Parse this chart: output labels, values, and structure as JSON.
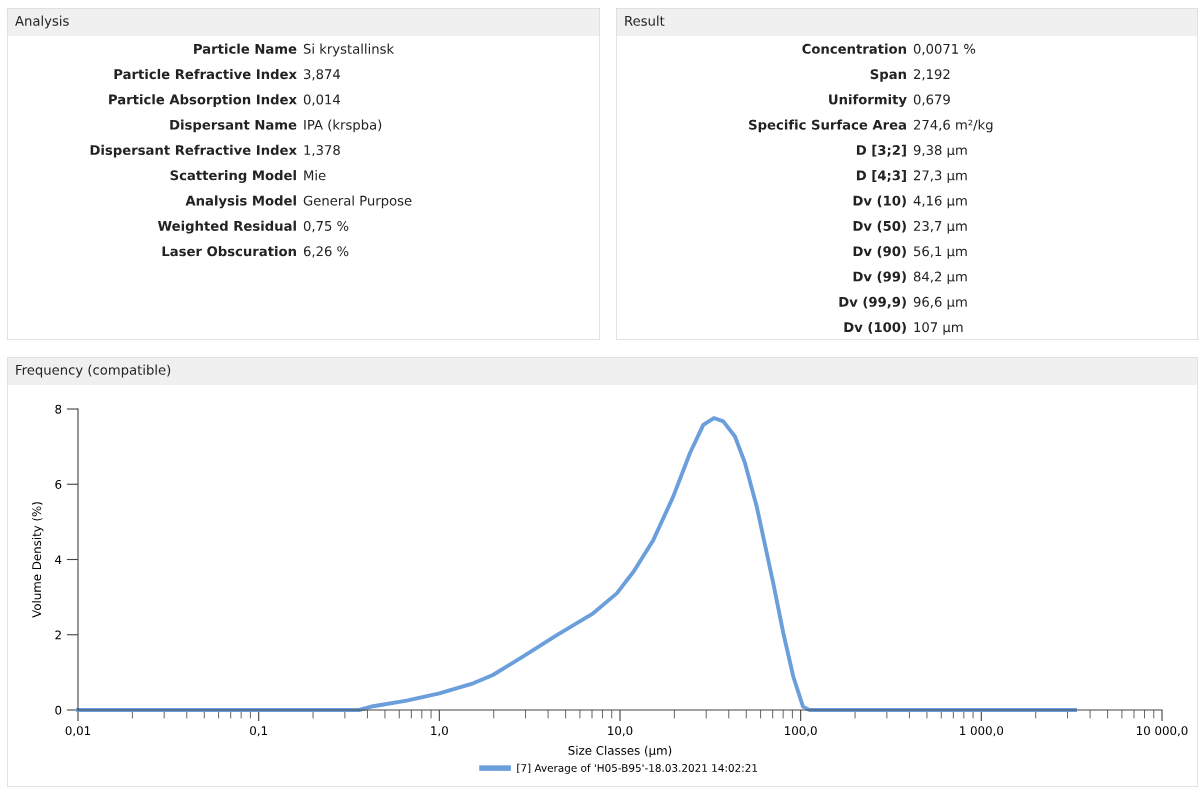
{
  "chart_data": [
    {
      "type": "other",
      "title": "Analysis",
      "annotations": [
        "Particle Name",
        "Si krystallinsk",
        "Particle Refractive Index",
        "3,874",
        "Particle Absorption Index",
        "0,014",
        "Dispersant Name",
        "IPA (krspba)",
        "Dispersant Refractive Index",
        "1,378",
        "Scattering Model",
        "Mie",
        "Analysis Model",
        "General Purpose",
        "Weighted Residual",
        "0,75 %",
        "Laser Obscuration",
        "6,26 %"
      ]
    },
    {
      "type": "other",
      "title": "Result",
      "annotations": [
        "Concentration",
        "0,0071 %",
        "Span",
        "2,192",
        "Uniformity",
        "0,679",
        "Specific Surface Area",
        "274,6 m²/kg",
        "D [3;2]",
        "9,38 µm",
        "D [4;3]",
        "27,3 µm",
        "Dv (10)",
        "4,16 µm",
        "Dv (50)",
        "23,7 µm",
        "Dv (90)",
        "56,1 µm",
        "Dv (99)",
        "84,2 µm",
        "Dv (99,9)",
        "96,6 µm",
        "Dv (100)",
        "107 µm"
      ]
    },
    {
      "type": "line",
      "title": "Frequency (compatible)",
      "xlabel": "Size Classes (µm)",
      "ylabel": "Volume Density (%)",
      "log": "x",
      "legend": "bottom",
      "grid": false,
      "marker": "none",
      "line_style": "solid",
      "xlim": [
        0.01,
        10000
      ],
      "xticks": [
        {
          "value": 0.01,
          "label": "0,01"
        },
        {
          "value": 0.1,
          "label": "0,1"
        },
        {
          "value": 1,
          "label": "1,0"
        },
        {
          "value": 10,
          "label": "10,0"
        },
        {
          "value": 100,
          "label": "100,0"
        },
        {
          "value": 1000,
          "label": "1 000,0"
        },
        {
          "value": 10000,
          "label": "10 000,0"
        }
      ],
      "ylim": [
        0,
        8
      ],
      "yticks": [
        0,
        2,
        4,
        6,
        8
      ],
      "series": [
        {
          "name": "[7] Average of 'H05-B95'-18.03.2021 14:02:21",
          "color": "#6a9fdc",
          "x": [
            0.01,
            0.36,
            0.43,
            0.66,
            1.0,
            1.54,
            1.98,
            2.9,
            4.47,
            7.1,
            9.6,
            11.9,
            15.3,
            19.7,
            24.4,
            28.9,
            33.1,
            37.3,
            43.3,
            49.2,
            57.1,
            70.5,
            80.2,
            91,
            103,
            112,
            3300
          ],
          "values": [
            0,
            0,
            0.1,
            0.25,
            0.44,
            0.71,
            0.93,
            1.42,
            1.99,
            2.57,
            3.1,
            3.68,
            4.52,
            5.67,
            6.83,
            7.58,
            7.76,
            7.67,
            7.27,
            6.56,
            5.41,
            3.37,
            2.04,
            0.89,
            0.09,
            0,
            0
          ]
        }
      ]
    }
  ]
}
